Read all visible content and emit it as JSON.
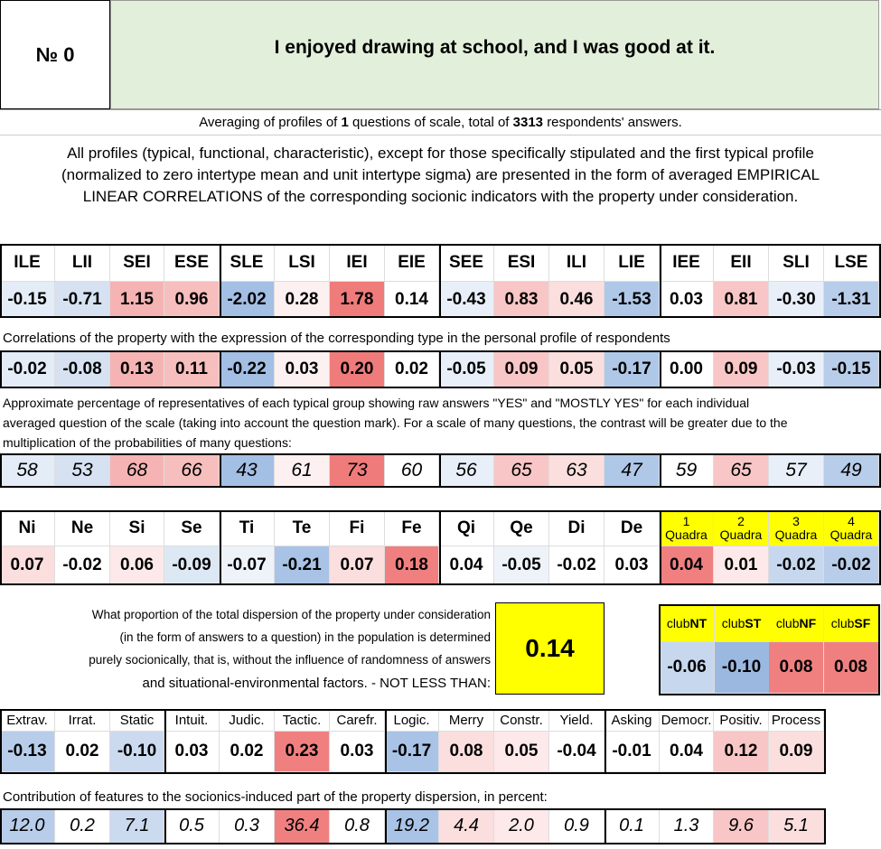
{
  "header": {
    "number_label": "№ 0",
    "title": "I enjoyed drawing at school, and I was good at it."
  },
  "summary": {
    "prefix": "Averaging of profiles of",
    "questions": "1",
    "middle": "questions of scale, total of",
    "respondents": "3313",
    "suffix": "respondents' answers."
  },
  "description": [
    "All profiles (typical, functional, characteristic), except for those specifically stipulated and the first typical profile",
    "(normalized to zero intertype mean and unit intertype sigma) are presented in the form of averaged EMPIRICAL",
    "LINEAR CORRELATIONS of the corresponding socionic indicators with the property under consideration."
  ],
  "types_table": {
    "columns": [
      "ILE",
      "LII",
      "SEI",
      "ESE",
      "SLE",
      "LSI",
      "IEI",
      "EIE",
      "SEE",
      "ESI",
      "ILI",
      "LIE",
      "IEE",
      "EII",
      "SLI",
      "LSE"
    ],
    "colors": [
      "#e3ecf7",
      "#d6e2f2",
      "#f5b3b3",
      "#f7bebe",
      "#a4bfe4",
      "#fdf0f0",
      "#ef7b7b",
      "#ffffff",
      "#e8eff8",
      "#f8c6c6",
      "#fbdede",
      "#b0c8e8",
      "#ffffff",
      "#f8c6c6",
      "#e8eff8",
      "#b8cdea"
    ],
    "scores": [
      "-0.15",
      "-0.71",
      "1.15",
      "0.96",
      "-2.02",
      "0.28",
      "1.78",
      "0.14",
      "-0.43",
      "0.83",
      "0.46",
      "-1.53",
      "0.03",
      "0.81",
      "-0.30",
      "-1.31"
    ],
    "correlations_caption": "Correlations of the property with the expression of the corresponding type in the personal profile of respondents",
    "correlations": [
      "-0.02",
      "-0.08",
      "0.13",
      "0.11",
      "-0.22",
      "0.03",
      "0.20",
      "0.02",
      "-0.05",
      "0.09",
      "0.05",
      "-0.17",
      "0.00",
      "0.09",
      "-0.03",
      "-0.15"
    ],
    "percent_caption": [
      "Approximate percentage of representatives of each typical group showing raw answers \"YES\" and \"MOSTLY YES\" for each individual",
      "averaged question of the scale (taking into account the question mark). For a scale of many questions, the contrast will be greater due to the",
      "multiplication of the probabilities of many questions:"
    ],
    "percentages": [
      "58",
      "53",
      "68",
      "66",
      "43",
      "61",
      "73",
      "60",
      "56",
      "65",
      "63",
      "47",
      "59",
      "65",
      "57",
      "49"
    ]
  },
  "functions_table": {
    "columns": [
      "Ni",
      "Ne",
      "Si",
      "Se",
      "Ti",
      "Te",
      "Fi",
      "Fe",
      "Qi",
      "Qe",
      "Di",
      "De"
    ],
    "quadras": [
      {
        "number": "1",
        "label": "Quadra"
      },
      {
        "number": "2",
        "label": "Quadra"
      },
      {
        "number": "3",
        "label": "Quadra"
      },
      {
        "number": "4",
        "label": "Quadra"
      }
    ],
    "quadra_color": "#ffff00",
    "values": [
      "0.07",
      "-0.02",
      "0.06",
      "-0.09",
      "-0.07",
      "-0.21",
      "0.07",
      "0.18",
      "0.04",
      "-0.05",
      "-0.02",
      "0.03",
      "0.04",
      "0.01",
      "-0.02",
      "-0.02"
    ],
    "colors": [
      "#fbdede",
      "#ffffff",
      "#fde9e9",
      "#dde8f5",
      "#eef3fa",
      "#a9c3e6",
      "#fbdede",
      "#f08080",
      "#ffffff",
      "#eef3fa",
      "#ffffff",
      "#ffffff",
      "#f08080",
      "#fde9e9",
      "#c7d8ee",
      "#b8cdea"
    ]
  },
  "dispersion": {
    "text_lines": [
      "What proportion of the total dispersion of the property under consideration",
      "(in the form of answers to a question) in the population is determined",
      "purely socionically, that is, without the influence of randomness of answers",
      "and situational-environmental factors. - NOT LESS THAN:"
    ],
    "value": "0.14",
    "value_color": "#ffff00",
    "clubs": [
      {
        "prefix": "club",
        "name": "NT"
      },
      {
        "prefix": "club",
        "name": "ST"
      },
      {
        "prefix": "club",
        "name": "NF"
      },
      {
        "prefix": "club",
        "name": "SF"
      }
    ],
    "club_values": [
      "-0.06",
      "-0.10",
      "0.08",
      "0.08"
    ],
    "club_colors": [
      "#c7d8ee",
      "#9bb8e0",
      "#f08080",
      "#f08080"
    ]
  },
  "features_table": {
    "columns": [
      "Extrav.",
      "Irrat.",
      "Static",
      "Intuit.",
      "Judic.",
      "Tactic.",
      "Carefr.",
      "Logic.",
      "Merry",
      "Constr.",
      "Yield.",
      "Asking",
      "Democr.",
      "Positiv.",
      "Process"
    ],
    "values": [
      "-0.13",
      "0.02",
      "-0.10",
      "0.03",
      "0.02",
      "0.23",
      "0.03",
      "-0.17",
      "0.08",
      "0.05",
      "-0.04",
      "-0.01",
      "0.04",
      "0.12",
      "0.09"
    ],
    "colors": [
      "#b8cdea",
      "#ffffff",
      "#cbdaef",
      "#ffffff",
      "#ffffff",
      "#f08080",
      "#ffffff",
      "#a9c3e6",
      "#fbdede",
      "#fde9e9",
      "#ffffff",
      "#ffffff",
      "#ffffff",
      "#f8c6c6",
      "#fbdede"
    ],
    "contribution_caption": "Contribution of features to the socionics-induced part of the property dispersion, in percent:",
    "contributions": [
      "12.0",
      "0.2",
      "7.1",
      "0.5",
      "0.3",
      "36.4",
      "0.8",
      "19.2",
      "4.4",
      "2.0",
      "0.9",
      "0.1",
      "1.3",
      "9.6",
      "5.1"
    ]
  }
}
